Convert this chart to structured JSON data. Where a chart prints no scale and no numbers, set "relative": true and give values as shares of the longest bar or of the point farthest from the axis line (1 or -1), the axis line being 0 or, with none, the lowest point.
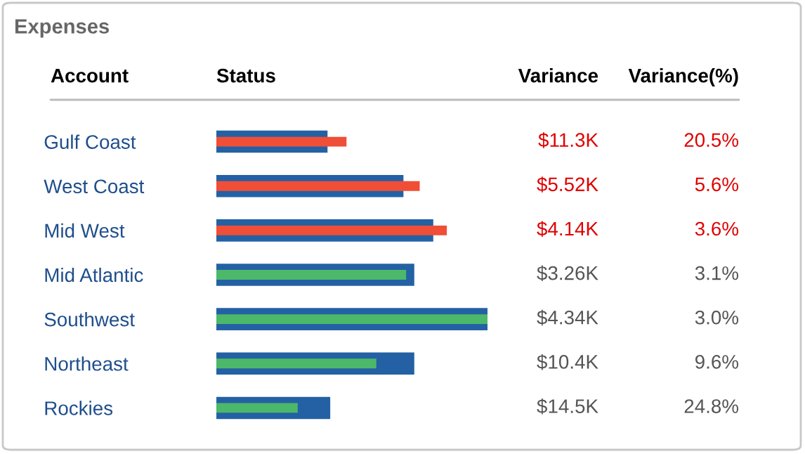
{
  "chart_data": {
    "type": "bar",
    "orientation": "horizontal",
    "relative": true,
    "title": "Expenses",
    "grid": false,
    "legend": false,
    "categories": [
      "Gulf Coast",
      "West Coast",
      "Mid West",
      "Mid Atlantic",
      "Southwest",
      "Northeast",
      "Rockies"
    ],
    "series": [
      {
        "color": "#2361a4",
        "values": [
          0.41,
          0.69,
          0.8,
          0.73,
          1.0,
          0.73,
          0.42
        ]
      },
      {
        "colors": [
          "#f04e37",
          "#f04e37",
          "#f04e37",
          "#4cb86a",
          "#4cb86a",
          "#4cb86a",
          "#4cb86a"
        ],
        "values": [
          0.48,
          0.75,
          0.85,
          0.7,
          1.0,
          0.59,
          0.3
        ]
      }
    ],
    "annotations": [
      "Account",
      "Status",
      "Variance",
      "Variance(%)",
      "$11.3K",
      "20.5%",
      "$5.52K",
      "5.6%",
      "$4.14K",
      "3.6%",
      "$3.26K",
      "3.1%",
      "$4.34K",
      "3.0%",
      "$10.4K",
      "9.6%",
      "$14.5K",
      "24.8%"
    ]
  }
}
